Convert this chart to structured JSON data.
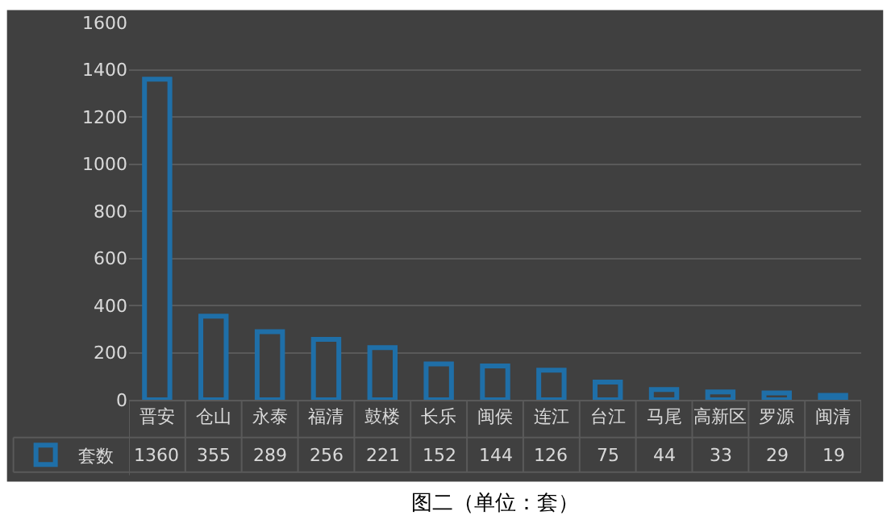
{
  "chart_data": {
    "type": "bar",
    "title": "图二（单位：套）",
    "categories": [
      "晋安",
      "仓山",
      "永泰",
      "福清",
      "鼓楼",
      "长乐",
      "闽侯",
      "连江",
      "台江",
      "马尾",
      "高新区",
      "罗源",
      "闽清"
    ],
    "series": [
      {
        "name": "套数",
        "color": "#1f6fa8",
        "values": [
          1360,
          355,
          289,
          256,
          221,
          152,
          144,
          126,
          75,
          44,
          33,
          29,
          19
        ]
      }
    ],
    "ylim": [
      0,
      1600
    ],
    "yticks": [
      0,
      200,
      400,
      600,
      800,
      1000,
      1200,
      1400,
      1600
    ],
    "grid": "y",
    "data_labels": true,
    "legend": "bottom left"
  }
}
